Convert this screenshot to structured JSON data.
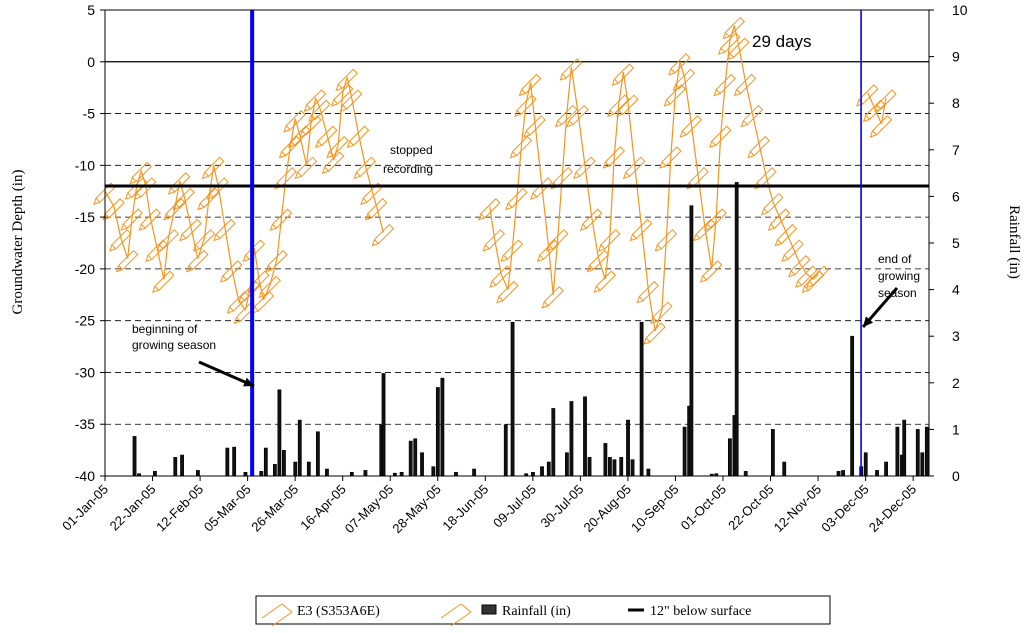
{
  "chart_data": {
    "type": "line",
    "ylabel": "Groundwater Depth (in)",
    "y2label": "Rainfall (in)",
    "ylim": [
      -40,
      5
    ],
    "y2lim": [
      0,
      10
    ],
    "yticks": [
      "5",
      "0",
      "-5",
      "-10",
      "-15",
      "-20",
      "-25",
      "-30",
      "-35",
      "-40"
    ],
    "y2ticks": [
      "10",
      "9",
      "8",
      "7",
      "6",
      "5",
      "4",
      "3",
      "2",
      "1",
      "0"
    ],
    "x_start": "2005-01-01",
    "x_end": "2005-12-31",
    "xticks": [
      "01-Jan-05",
      "22-Jan-05",
      "12-Feb-05",
      "05-Mar-05",
      "26-Mar-05",
      "16-Apr-05",
      "07-May-05",
      "28-May-05",
      "18-Jun-05",
      "09-Jul-05",
      "30-Jul-05",
      "20-Aug-05",
      "10-Sep-05",
      "01-Oct-05",
      "22-Oct-05",
      "12-Nov-05",
      "03-Dec-05",
      "24-Dec-05"
    ],
    "grid": "horizontal dashed",
    "reference_line": {
      "name": "12\" below surface",
      "y": -12
    },
    "zero_line": 0,
    "season_markers": [
      {
        "date": "2005-03-07",
        "label": "beginning of growing season"
      },
      {
        "date": "2005-12-01",
        "label": "end of growing season"
      }
    ],
    "annotations": [
      {
        "text": "stopped",
        "text2": "recording"
      },
      {
        "text": "29 days"
      },
      {
        "text": "beginning of",
        "text2": "growing season"
      },
      {
        "text": "end of",
        "text2": "growing",
        "text3": "season"
      }
    ],
    "legend": {
      "position": "bottom",
      "items": [
        "E3 (S353A6E)",
        "Rainfall (in)",
        "12\" below surface"
      ]
    },
    "series": [
      {
        "name": "E3 (S353A6E)",
        "axis": "left",
        "color": "#f7941d",
        "points": [
          [
            "2005-01-01",
            -12.5
          ],
          [
            "2005-01-05",
            -14
          ],
          [
            "2005-01-08",
            -17
          ],
          [
            "2005-01-11",
            -19
          ],
          [
            "2005-01-13",
            -15
          ],
          [
            "2005-01-15",
            -12
          ],
          [
            "2005-01-17",
            -10.5
          ],
          [
            "2005-01-19",
            -12
          ],
          [
            "2005-01-21",
            -15
          ],
          [
            "2005-01-24",
            -18
          ],
          [
            "2005-01-27",
            -21
          ],
          [
            "2005-01-29",
            -17
          ],
          [
            "2005-02-01",
            -14
          ],
          [
            "2005-02-03",
            -11.5
          ],
          [
            "2005-02-05",
            -13
          ],
          [
            "2005-02-08",
            -16
          ],
          [
            "2005-02-11",
            -19
          ],
          [
            "2005-02-14",
            -17
          ],
          [
            "2005-02-16",
            -13
          ],
          [
            "2005-02-18",
            -10
          ],
          [
            "2005-02-20",
            -12
          ],
          [
            "2005-02-23",
            -16
          ],
          [
            "2005-02-26",
            -20
          ],
          [
            "2005-03-01",
            -23
          ],
          [
            "2005-03-04",
            -24
          ],
          [
            "2005-03-06",
            -22
          ],
          [
            "2005-03-08",
            -18
          ],
          [
            "2005-03-10",
            -21
          ],
          [
            "2005-03-12",
            -23
          ],
          [
            "2005-03-15",
            -21.5
          ],
          [
            "2005-03-18",
            -19
          ],
          [
            "2005-03-20",
            -15
          ],
          [
            "2005-03-22",
            -11
          ],
          [
            "2005-03-24",
            -8
          ],
          [
            "2005-03-26",
            -5.5
          ],
          [
            "2005-03-28",
            -7
          ],
          [
            "2005-03-31",
            -10
          ],
          [
            "2005-04-02",
            -6
          ],
          [
            "2005-04-04",
            -3.5
          ],
          [
            "2005-04-06",
            -4.5
          ],
          [
            "2005-04-09",
            -7
          ],
          [
            "2005-04-12",
            -9.5
          ],
          [
            "2005-04-14",
            -8
          ],
          [
            "2005-04-16",
            -3
          ],
          [
            "2005-04-18",
            -1.5
          ],
          [
            "2005-04-20",
            -3.5
          ],
          [
            "2005-04-23",
            -7
          ],
          [
            "2005-04-26",
            -10
          ],
          [
            "2005-04-29",
            -12.5
          ],
          [
            "2005-05-01",
            -14
          ],
          [
            "2005-05-04",
            -16.5
          ],
          [
            "2005-06-20",
            -14
          ],
          [
            "2005-06-22",
            -17
          ],
          [
            "2005-06-25",
            -20.5
          ],
          [
            "2005-06-28",
            -22
          ],
          [
            "2005-06-30",
            -18
          ],
          [
            "2005-07-02",
            -13
          ],
          [
            "2005-07-04",
            -8
          ],
          [
            "2005-07-06",
            -4
          ],
          [
            "2005-07-08",
            -2
          ],
          [
            "2005-07-10",
            -6
          ],
          [
            "2005-07-13",
            -12
          ],
          [
            "2005-07-16",
            -18
          ],
          [
            "2005-07-18",
            -22.5
          ],
          [
            "2005-07-20",
            -17
          ],
          [
            "2005-07-22",
            -11
          ],
          [
            "2005-07-24",
            -5
          ],
          [
            "2005-07-26",
            -0.5
          ],
          [
            "2005-07-29",
            -5
          ],
          [
            "2005-08-01",
            -10
          ],
          [
            "2005-08-04",
            -15
          ],
          [
            "2005-08-07",
            -19
          ],
          [
            "2005-08-10",
            -21
          ],
          [
            "2005-08-12",
            -17
          ],
          [
            "2005-08-14",
            -9
          ],
          [
            "2005-08-16",
            -4
          ],
          [
            "2005-08-18",
            -1
          ],
          [
            "2005-08-20",
            -4
          ],
          [
            "2005-08-23",
            -10
          ],
          [
            "2005-08-26",
            -16
          ],
          [
            "2005-08-29",
            -22
          ],
          [
            "2005-09-01",
            -26
          ],
          [
            "2005-09-04",
            -24
          ],
          [
            "2005-09-06",
            -17
          ],
          [
            "2005-09-08",
            -9
          ],
          [
            "2005-09-10",
            -3
          ],
          [
            "2005-09-12",
            0
          ],
          [
            "2005-09-14",
            -1.5
          ],
          [
            "2005-09-17",
            -6
          ],
          [
            "2005-09-20",
            -11
          ],
          [
            "2005-09-23",
            -16
          ],
          [
            "2005-09-26",
            -20
          ],
          [
            "2005-09-28",
            -15
          ],
          [
            "2005-09-30",
            -7
          ],
          [
            "2005-10-02",
            -2
          ],
          [
            "2005-10-04",
            2
          ],
          [
            "2005-10-06",
            3.5
          ],
          [
            "2005-10-08",
            1.5
          ],
          [
            "2005-10-11",
            -2
          ],
          [
            "2005-10-14",
            -5
          ],
          [
            "2005-10-17",
            -8
          ],
          [
            "2005-10-20",
            -11
          ],
          [
            "2005-10-23",
            -13.5
          ],
          [
            "2005-10-26",
            -15
          ],
          [
            "2005-10-29",
            -16.5
          ],
          [
            "2005-11-01",
            -18
          ],
          [
            "2005-11-04",
            -19.5
          ],
          [
            "2005-11-07",
            -20.5
          ],
          [
            "2005-11-10",
            -21
          ],
          [
            "2005-11-12",
            -20.5
          ],
          [
            "2005-12-04",
            -3
          ],
          [
            "2005-12-07",
            -4.5
          ],
          [
            "2005-12-10",
            -6
          ],
          [
            "2005-12-12",
            -3.5
          ]
        ]
      },
      {
        "name": "Rainfall (in)",
        "axis": "right",
        "type": "bar",
        "color": "#000000",
        "points": [
          [
            "2005-01-14",
            0.85
          ],
          [
            "2005-01-16",
            0.05
          ],
          [
            "2005-01-23",
            0.1
          ],
          [
            "2005-02-01",
            0.4
          ],
          [
            "2005-02-04",
            0.45
          ],
          [
            "2005-02-11",
            0.12
          ],
          [
            "2005-02-24",
            0.6
          ],
          [
            "2005-02-27",
            0.62
          ],
          [
            "2005-03-04",
            0.08
          ],
          [
            "2005-03-11",
            0.1
          ],
          [
            "2005-03-13",
            0.6
          ],
          [
            "2005-03-17",
            0.25
          ],
          [
            "2005-03-19",
            1.85
          ],
          [
            "2005-03-21",
            0.55
          ],
          [
            "2005-03-26",
            0.3
          ],
          [
            "2005-03-28",
            1.2
          ],
          [
            "2005-04-01",
            0.3
          ],
          [
            "2005-04-05",
            0.95
          ],
          [
            "2005-04-09",
            0.15
          ],
          [
            "2005-04-20",
            0.08
          ],
          [
            "2005-04-26",
            0.12
          ],
          [
            "2005-05-03",
            1.1
          ],
          [
            "2005-05-04",
            2.2
          ],
          [
            "2005-05-09",
            0.06
          ],
          [
            "2005-05-12",
            0.08
          ],
          [
            "2005-05-16",
            0.75
          ],
          [
            "2005-05-18",
            0.8
          ],
          [
            "2005-05-21",
            0.5
          ],
          [
            "2005-05-26",
            0.2
          ],
          [
            "2005-05-28",
            1.9
          ],
          [
            "2005-05-30",
            2.1
          ],
          [
            "2005-06-05",
            0.08
          ],
          [
            "2005-06-13",
            0.15
          ],
          [
            "2005-06-27",
            1.1
          ],
          [
            "2005-06-30",
            3.3
          ],
          [
            "2005-07-06",
            0.05
          ],
          [
            "2005-07-09",
            0.08
          ],
          [
            "2005-07-13",
            0.2
          ],
          [
            "2005-07-16",
            0.3
          ],
          [
            "2005-07-18",
            1.45
          ],
          [
            "2005-07-24",
            0.5
          ],
          [
            "2005-07-26",
            1.6
          ],
          [
            "2005-08-01",
            1.7
          ],
          [
            "2005-08-03",
            0.4
          ],
          [
            "2005-08-10",
            0.7
          ],
          [
            "2005-08-12",
            0.4
          ],
          [
            "2005-08-14",
            0.35
          ],
          [
            "2005-08-17",
            0.4
          ],
          [
            "2005-08-20",
            1.2
          ],
          [
            "2005-08-22",
            0.35
          ],
          [
            "2005-08-26",
            3.3
          ],
          [
            "2005-08-29",
            0.15
          ],
          [
            "2005-09-14",
            1.05
          ],
          [
            "2005-09-16",
            1.5
          ],
          [
            "2005-09-17",
            5.8
          ],
          [
            "2005-09-26",
            0.04
          ],
          [
            "2005-09-28",
            0.05
          ],
          [
            "2005-10-04",
            0.8
          ],
          [
            "2005-10-06",
            1.3
          ],
          [
            "2005-10-07",
            6.3
          ],
          [
            "2005-10-11",
            0.1
          ],
          [
            "2005-10-23",
            1.0
          ],
          [
            "2005-10-28",
            0.3
          ],
          [
            "2005-11-21",
            0.1
          ],
          [
            "2005-11-23",
            0.12
          ],
          [
            "2005-11-27",
            3.0
          ],
          [
            "2005-12-01",
            0.2
          ],
          [
            "2005-12-03",
            0.5
          ],
          [
            "2005-12-08",
            0.12
          ],
          [
            "2005-12-12",
            0.3
          ],
          [
            "2005-12-17",
            1.05
          ],
          [
            "2005-12-19",
            0.45
          ],
          [
            "2005-12-20",
            1.2
          ],
          [
            "2005-12-26",
            1.0
          ],
          [
            "2005-12-28",
            0.5
          ],
          [
            "2005-12-30",
            1.05
          ]
        ]
      },
      {
        "name": "12\" below surface",
        "axis": "left",
        "color": "#000000",
        "points": [
          [
            "2005-01-01",
            -12
          ],
          [
            "2005-12-31",
            -12
          ]
        ]
      }
    ]
  }
}
